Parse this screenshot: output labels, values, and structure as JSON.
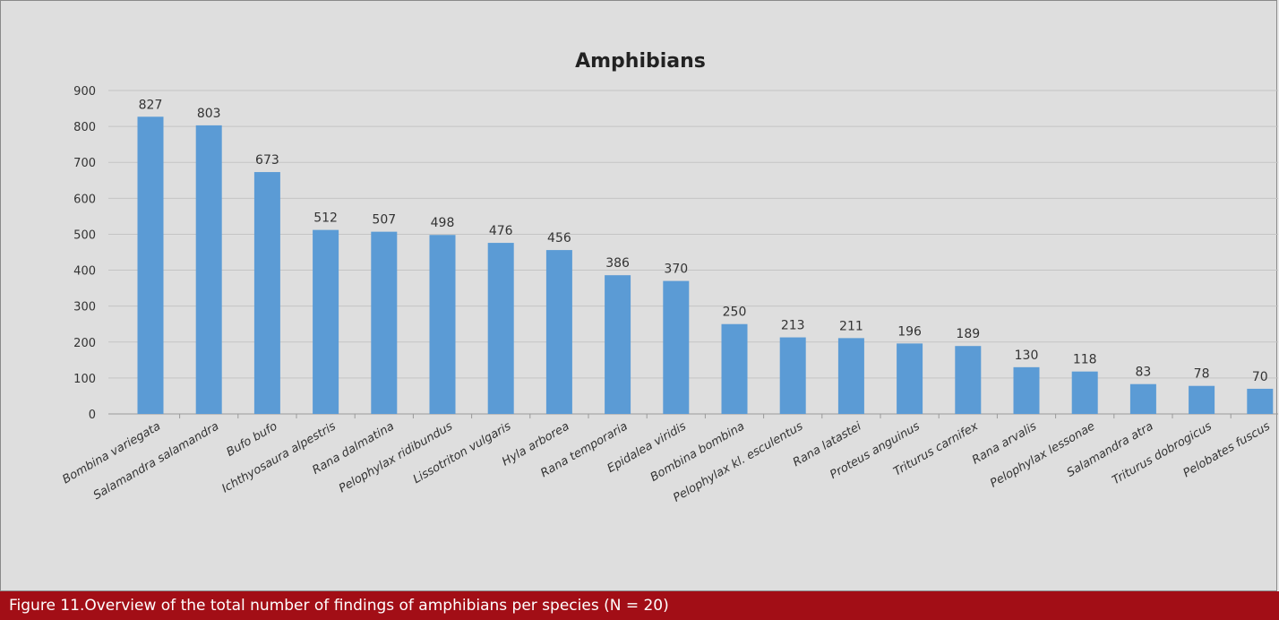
{
  "chart_data": {
    "type": "bar",
    "title": "Amphibians",
    "categories": [
      "Bombina variegata",
      "Salamandra salamandra",
      "Bufo bufo",
      "Ichthyosaura alpestris",
      "Rana dalmatina",
      "Pelophylax ridibundus",
      "Lissotriton vulgaris",
      "Hyla arborea",
      "Rana temporaria",
      "Epidalea viridis",
      "Bombina bombina",
      "Pelophylax kl. esculentus",
      "Rana latastei",
      "Proteus anguinus",
      "Triturus carnifex",
      "Rana arvalis",
      "Pelophylax lessonae",
      "Salamandra atra",
      "Triturus dobrogicus",
      "Pelobates fuscus"
    ],
    "values": [
      827,
      803,
      673,
      512,
      507,
      498,
      476,
      456,
      386,
      370,
      250,
      213,
      211,
      196,
      189,
      130,
      118,
      83,
      78,
      70
    ],
    "xlabel": "",
    "ylabel": "",
    "ylim": [
      0,
      900
    ],
    "yticks": [
      0,
      100,
      200,
      300,
      400,
      500,
      600,
      700,
      800,
      900
    ],
    "grid": true,
    "legend": false,
    "bar_color": "#5b9bd5",
    "data_labels": true
  },
  "caption": "Figure 11.Overview of the total number of findings of amphibians per species (N = 20)",
  "colors": {
    "caption_bg": "#a20e16",
    "caption_text": "#ffffff",
    "chart_bg": "#dedede",
    "grid": "#c4c4c4"
  }
}
